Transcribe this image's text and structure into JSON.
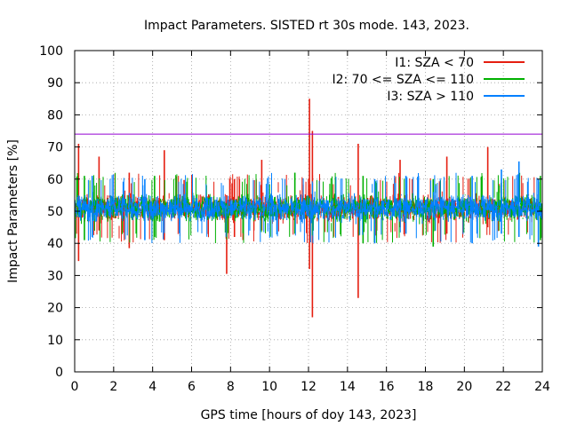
{
  "chart_data": {
    "type": "line",
    "title": "Impact Parameters. SISTED rt 30s mode. 143, 2023.",
    "xlabel": "GPS time [hours of doy 143, 2023]",
    "ylabel": "Impact Parameters [%]",
    "xlim": [
      0,
      24
    ],
    "ylim": [
      0,
      100
    ],
    "xticks": [
      0,
      2,
      4,
      6,
      8,
      10,
      12,
      14,
      16,
      18,
      20,
      22,
      24
    ],
    "yticks": [
      0,
      10,
      20,
      30,
      40,
      50,
      60,
      70,
      80,
      90,
      100
    ],
    "grid": true,
    "legend_position": "top-right",
    "threshold": {
      "value": 74,
      "color": "#9400d3"
    },
    "series": [
      {
        "name": "I1: SZA < 70",
        "color": "#e51e10",
        "center": 51,
        "band": 5,
        "spikes": [
          {
            "x": 0.2,
            "lo": 34.5,
            "hi": 71
          },
          {
            "x": 1.25,
            "lo": 44,
            "hi": 67
          },
          {
            "x": 2.8,
            "lo": 38.5,
            "hi": 62
          },
          {
            "x": 4.6,
            "lo": 41,
            "hi": 69
          },
          {
            "x": 7.8,
            "lo": 30.5,
            "hi": 55
          },
          {
            "x": 8.2,
            "lo": 42,
            "hi": 60
          },
          {
            "x": 9.6,
            "lo": 44,
            "hi": 66
          },
          {
            "x": 12.05,
            "lo": 32,
            "hi": 85
          },
          {
            "x": 12.2,
            "lo": 17,
            "hi": 75
          },
          {
            "x": 14.55,
            "lo": 23,
            "hi": 71
          },
          {
            "x": 16.7,
            "lo": 45,
            "hi": 66
          },
          {
            "x": 19.1,
            "lo": 43,
            "hi": 67
          },
          {
            "x": 21.2,
            "lo": 45,
            "hi": 70
          }
        ]
      },
      {
        "name": "I2: 70 <= SZA <= 110",
        "color": "#00b000",
        "center": 51,
        "band": 5,
        "spikes": [
          {
            "x": 0.5,
            "lo": 41,
            "hi": 61
          },
          {
            "x": 4.1,
            "lo": 42,
            "hi": 61
          },
          {
            "x": 11.3,
            "lo": 43,
            "hi": 62
          },
          {
            "x": 14.8,
            "lo": 40,
            "hi": 61
          },
          {
            "x": 18.4,
            "lo": 39,
            "hi": 60
          },
          {
            "x": 23.9,
            "lo": 41,
            "hi": 61
          }
        ]
      },
      {
        "name": "I3: SZA > 110",
        "color": "#0080ff",
        "center": 51,
        "band": 5,
        "spikes": [
          {
            "x": 0.9,
            "lo": 42,
            "hi": 61
          },
          {
            "x": 3.6,
            "lo": 41,
            "hi": 60
          },
          {
            "x": 15.4,
            "lo": 40,
            "hi": 60
          },
          {
            "x": 17.0,
            "lo": 43,
            "hi": 61
          },
          {
            "x": 20.4,
            "lo": 40,
            "hi": 61
          },
          {
            "x": 21.9,
            "lo": 43,
            "hi": 63
          },
          {
            "x": 22.8,
            "lo": 42,
            "hi": 65.5
          },
          {
            "x": 23.8,
            "lo": 39,
            "hi": 60
          }
        ]
      }
    ]
  }
}
